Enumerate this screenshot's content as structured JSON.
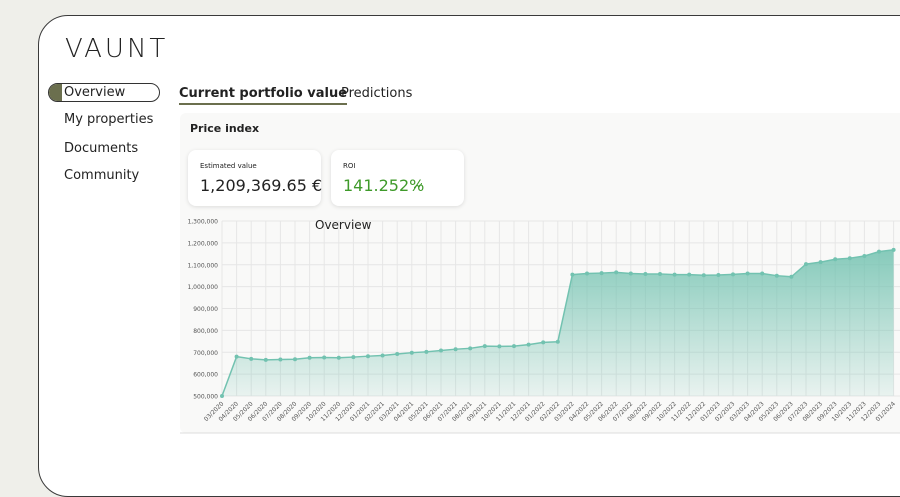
{
  "logo": "VAUNT",
  "sidebar": {
    "items": [
      "Overview",
      "My properties",
      "Documents",
      "Community"
    ]
  },
  "tabs": [
    "Current portfolio value",
    "Predictions"
  ],
  "panel_title": "Price index",
  "cards": [
    {
      "label": "Estimated value",
      "value": "1,209,369.65 €"
    },
    {
      "label": "ROI",
      "value": "141.252%"
    }
  ],
  "chart_data": {
    "type": "area",
    "title": "Overview",
    "categories": [
      "03/2020",
      "04/2020",
      "05/2020",
      "06/2020",
      "07/2020",
      "08/2020",
      "09/2020",
      "10/2020",
      "11/2020",
      "12/2020",
      "01/2021",
      "02/2021",
      "03/2021",
      "04/2021",
      "05/2021",
      "06/2021",
      "07/2021",
      "08/2021",
      "09/2021",
      "10/2021",
      "11/2021",
      "12/2021",
      "01/2022",
      "02/2022",
      "03/2022",
      "04/2022",
      "05/2022",
      "06/2022",
      "07/2022",
      "08/2022",
      "09/2022",
      "10/2022",
      "11/2022",
      "12/2022",
      "01/2023",
      "02/2023",
      "03/2023",
      "04/2023",
      "05/2023",
      "06/2023",
      "07/2023",
      "08/2023",
      "09/2023",
      "10/2023",
      "11/2023",
      "12/2023",
      "01/2024"
    ],
    "values": [
      500000,
      680000,
      670000,
      665000,
      667000,
      668000,
      675000,
      676000,
      675000,
      678000,
      682000,
      685000,
      692000,
      698000,
      702000,
      708000,
      714000,
      718000,
      728000,
      727000,
      728000,
      735000,
      745000,
      748000,
      1055000,
      1060000,
      1062000,
      1065000,
      1060000,
      1058000,
      1058000,
      1055000,
      1055000,
      1052000,
      1053000,
      1056000,
      1060000,
      1060000,
      1050000,
      1045000,
      1103000,
      1112000,
      1125000,
      1130000,
      1140000,
      1160000,
      1168000
    ],
    "color": "#72c2b0",
    "ylim": [
      500000,
      1300000
    ],
    "yticks": [
      {
        "value": 500000,
        "label": "500,000"
      },
      {
        "value": 600000,
        "label": "600,000"
      },
      {
        "value": 700000,
        "label": "700,000"
      },
      {
        "value": 800000,
        "label": "800,000"
      },
      {
        "value": 900000,
        "label": "900,000"
      },
      {
        "value": 1000000,
        "label": "1,000,000"
      },
      {
        "value": 1100000,
        "label": "1,100,000"
      },
      {
        "value": 1200000,
        "label": "1,200,000"
      },
      {
        "value": 1300000,
        "label": "1,300,000"
      }
    ],
    "grid": true
  }
}
